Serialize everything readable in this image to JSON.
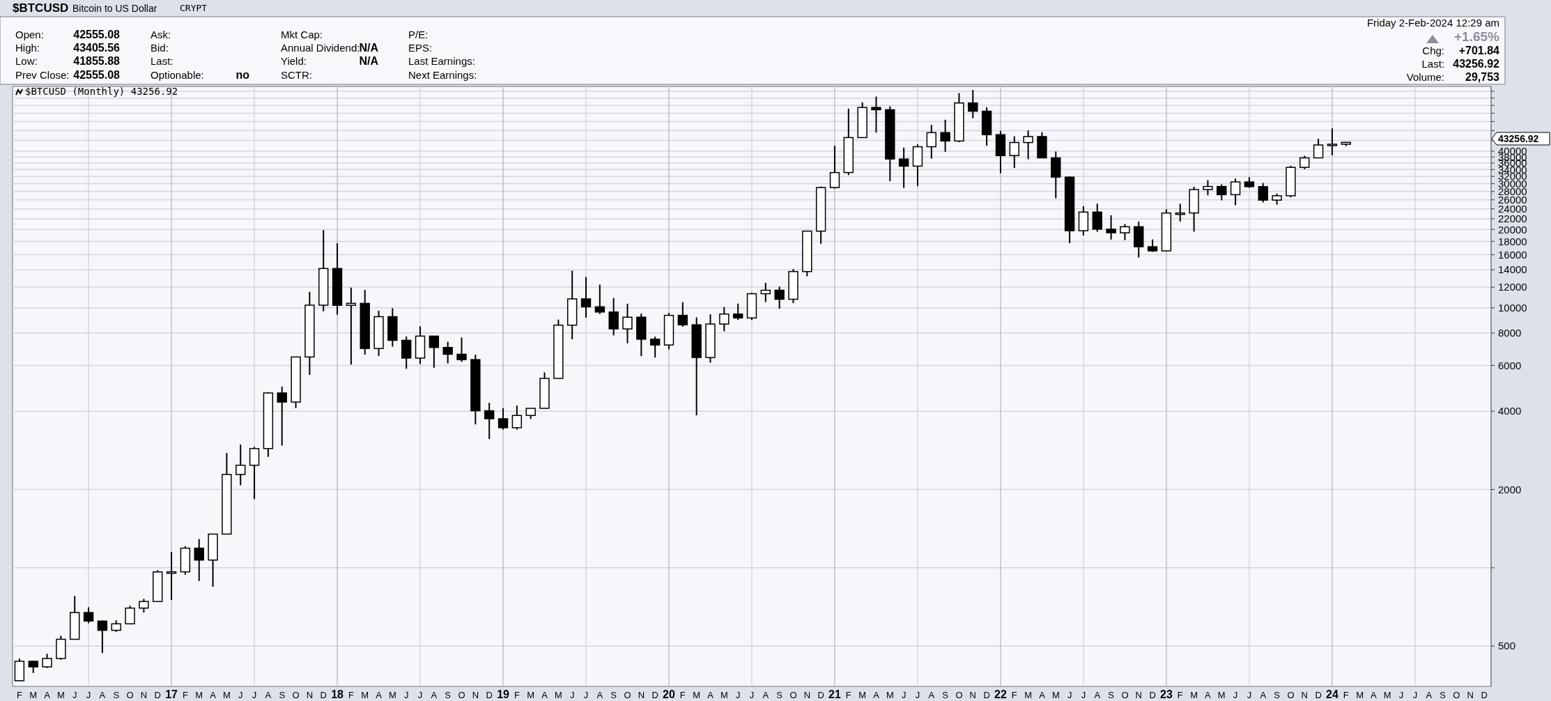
{
  "chart_data": {
    "type": "candlestick",
    "title": "$BTCUSD",
    "subtitle": "Bitcoin to US Dollar",
    "annotations": [
      "CRYPT",
      "Open:",
      "42555.08",
      "High:",
      "43405.56",
      "Low:",
      "41855.88",
      "Prev Close:",
      "42555.08",
      "Ask:",
      "Bid:",
      "Last:",
      "Optionable:",
      "no",
      "Mkt Cap:",
      "Annual Dividend:",
      "N/A",
      "Yield:",
      "N/A",
      "SCTR:",
      "P/E:",
      "EPS:",
      "Last Earnings:",
      "Next Earnings:",
      "Friday  2-Feb-2024  12:29 am",
      "+1.65%",
      "Chg:",
      "+701.84",
      "Last:",
      "43256.92",
      "Volume:",
      "29,753",
      "$BTCUSD (Monthly) 43256.92",
      "43256.92"
    ],
    "categories": [
      "F",
      "M",
      "A",
      "M",
      "J",
      "J",
      "A",
      "S",
      "O",
      "N",
      "D",
      "17",
      "F",
      "M",
      "A",
      "M",
      "J",
      "J",
      "A",
      "S",
      "O",
      "N",
      "D",
      "18",
      "F",
      "M",
      "A",
      "M",
      "J",
      "J",
      "A",
      "S",
      "O",
      "N",
      "D",
      "19",
      "F",
      "M",
      "A",
      "M",
      "J",
      "J",
      "A",
      "S",
      "O",
      "N",
      "D",
      "20",
      "F",
      "M",
      "A",
      "M",
      "J",
      "J",
      "A",
      "S",
      "O",
      "N",
      "D",
      "21",
      "F",
      "M",
      "A",
      "M",
      "J",
      "J",
      "A",
      "S",
      "O",
      "N",
      "D",
      "22",
      "F",
      "M",
      "A",
      "M",
      "J",
      "J",
      "A",
      "S",
      "O",
      "N",
      "D",
      "23",
      "F",
      "M",
      "A",
      "M",
      "J",
      "J",
      "A",
      "S",
      "O",
      "N",
      "D",
      "24",
      "F",
      "M",
      "A",
      "M",
      "J",
      "J",
      "A",
      "S",
      "O",
      "N",
      "D"
    ],
    "ohlc": [
      [
        368,
        448,
        367,
        437
      ],
      [
        437,
        439,
        394,
        416
      ],
      [
        416,
        467,
        412,
        448
      ],
      [
        448,
        548,
        443,
        531
      ],
      [
        531,
        779,
        531,
        673
      ],
      [
        673,
        705,
        612,
        624
      ],
      [
        624,
        627,
        470,
        575
      ],
      [
        575,
        628,
        567,
        609
      ],
      [
        609,
        715,
        606,
        700
      ],
      [
        700,
        760,
        673,
        742
      ],
      [
        742,
        979,
        741,
        964
      ],
      [
        964,
        1150,
        752,
        965
      ],
      [
        965,
        1211,
        940,
        1190
      ],
      [
        1190,
        1290,
        890,
        1071
      ],
      [
        1071,
        1350,
        845,
        1348
      ],
      [
        1348,
        2763,
        1348,
        2286
      ],
      [
        2286,
        2980,
        2076,
        2480
      ],
      [
        2480,
        2916,
        1837,
        2875
      ],
      [
        2875,
        4736,
        2671,
        4703
      ],
      [
        4703,
        4975,
        2951,
        4338
      ],
      [
        4338,
        6470,
        4110,
        6468
      ],
      [
        6468,
        11517,
        5519,
        10233
      ],
      [
        10233,
        19892,
        9692,
        14156
      ],
      [
        14156,
        17712,
        9402,
        10221
      ],
      [
        10221,
        11958,
        6048,
        10397
      ],
      [
        10397,
        11711,
        6600,
        6973
      ],
      [
        6973,
        9745,
        6526,
        9240
      ],
      [
        9240,
        9964,
        7090,
        7494
      ],
      [
        7494,
        7754,
        5826,
        6404
      ],
      [
        6404,
        8488,
        6070,
        7780
      ],
      [
        7780,
        7780,
        5880,
        7037
      ],
      [
        7037,
        7402,
        6112,
        6625
      ],
      [
        6625,
        7680,
        6200,
        6318
      ],
      [
        6318,
        6600,
        3560,
        4017
      ],
      [
        4017,
        4309,
        3128,
        3743
      ],
      [
        3743,
        4109,
        3401,
        3457
      ],
      [
        3457,
        4210,
        3400,
        3854
      ],
      [
        3854,
        4110,
        3734,
        4105
      ],
      [
        4105,
        5642,
        4097,
        5350
      ],
      [
        5350,
        9008,
        5350,
        8574
      ],
      [
        8574,
        13880,
        7564,
        10817
      ],
      [
        10817,
        13129,
        9163,
        10085
      ],
      [
        10085,
        12273,
        9467,
        9630
      ],
      [
        9630,
        10905,
        7830,
        8293
      ],
      [
        8293,
        10370,
        7300,
        9199
      ],
      [
        9199,
        9505,
        6515,
        7569
      ],
      [
        7569,
        7743,
        6435,
        7193
      ],
      [
        7193,
        9553,
        6915,
        9350
      ],
      [
        9350,
        10500,
        8450,
        8599
      ],
      [
        8599,
        9188,
        3858,
        6438
      ],
      [
        6438,
        9440,
        6150,
        8658
      ],
      [
        8658,
        10067,
        8117,
        9461
      ],
      [
        9461,
        10380,
        8975,
        9137
      ],
      [
        9137,
        11434,
        8977,
        11323
      ],
      [
        11323,
        12468,
        10519,
        11680
      ],
      [
        11680,
        12067,
        9916,
        10784
      ],
      [
        10784,
        14093,
        10416,
        13781
      ],
      [
        13781,
        19749,
        13219,
        19713
      ],
      [
        19713,
        29244,
        17619,
        28990
      ],
      [
        28990,
        41946,
        28722,
        33114
      ],
      [
        33114,
        58330,
        32384,
        45137
      ],
      [
        45137,
        61683,
        45115,
        58918
      ],
      [
        58918,
        64863,
        47159,
        57750
      ],
      [
        57750,
        59519,
        30681,
        37332
      ],
      [
        37332,
        41295,
        28893,
        35041
      ],
      [
        35041,
        42500,
        29360,
        41626
      ],
      [
        41626,
        50482,
        37458,
        47166
      ],
      [
        47166,
        52853,
        39787,
        43790
      ],
      [
        43790,
        66930,
        43320,
        61318
      ],
      [
        61318,
        68789,
        53569,
        57005
      ],
      [
        57005,
        59041,
        42001,
        46306
      ],
      [
        46306,
        47882,
        32933,
        38483
      ],
      [
        38483,
        45661,
        34460,
        43194
      ],
      [
        43194,
        48086,
        37260,
        45538
      ],
      [
        45538,
        47313,
        37702,
        37714
      ],
      [
        37714,
        39902,
        26350,
        31792
      ],
      [
        31792,
        31957,
        17708,
        19785
      ],
      [
        19785,
        24572,
        18966,
        23336
      ],
      [
        23336,
        25135,
        19600,
        20050
      ],
      [
        20050,
        22673,
        18290,
        19423
      ],
      [
        19423,
        20988,
        18193,
        20495
      ],
      [
        20495,
        21446,
        15599,
        17168
      ],
      [
        17168,
        18318,
        16398,
        16548
      ],
      [
        16548,
        23919,
        16521,
        23139
      ],
      [
        23139,
        25134,
        21460,
        23147
      ],
      [
        23147,
        29185,
        19628,
        28478
      ],
      [
        28478,
        30967,
        27070,
        29268
      ],
      [
        29268,
        29820,
        25878,
        27219
      ],
      [
        27219,
        31390,
        24797,
        30477
      ],
      [
        30477,
        31804,
        28934,
        29230
      ],
      [
        29230,
        30176,
        25409,
        25940
      ],
      [
        25940,
        27488,
        24930,
        26967
      ],
      [
        26967,
        35198,
        26558,
        34667
      ],
      [
        34667,
        38415,
        34114,
        37713
      ],
      [
        37713,
        44700,
        37640,
        42265
      ],
      [
        42280,
        48969,
        38555,
        42555.08
      ],
      [
        42555.08,
        43405.56,
        41855.88,
        43256.92
      ],
      null,
      null,
      null,
      null,
      null,
      null,
      null,
      null,
      null,
      null
    ],
    "log": "y",
    "ylim": [
      350,
      71000
    ],
    "yticks": [
      500,
      {
        "value": 1000,
        "label": null
      },
      2000,
      4000,
      6000,
      8000,
      10000,
      12000,
      14000,
      16000,
      18000,
      20000,
      22000,
      24000,
      26000,
      28000,
      30000,
      32000,
      34000,
      36000,
      38000,
      40000,
      {
        "value": 44000,
        "label": null
      },
      {
        "value": 48000,
        "label": null
      },
      {
        "value": 52000,
        "label": null
      },
      {
        "value": 56000,
        "label": null
      },
      {
        "value": 60000,
        "label": null
      },
      {
        "value": 64000,
        "label": null
      },
      {
        "value": 68000,
        "label": null
      }
    ],
    "grid": true
  }
}
